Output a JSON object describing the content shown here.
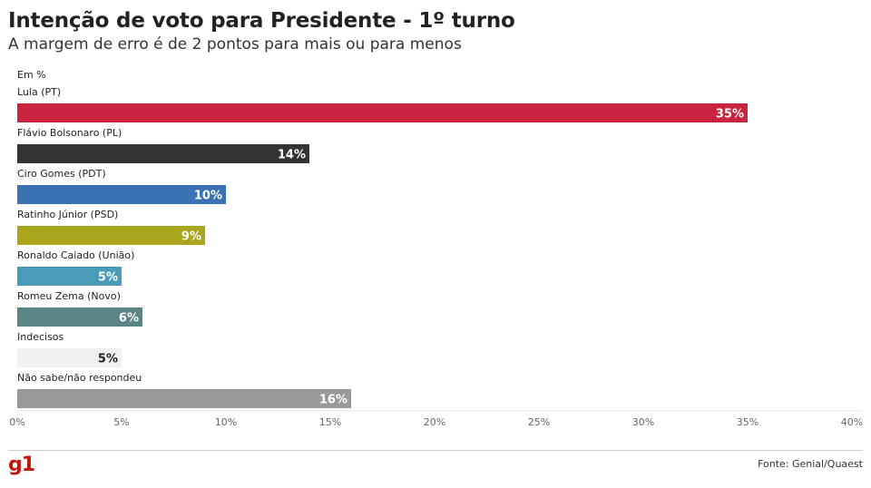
{
  "header": {
    "title": "Intenção de voto para Presidente - 1º turno",
    "subtitle": "A margem de erro é de 2 pontos para mais ou para menos"
  },
  "footer": {
    "logo": "g1",
    "logo_color": "#c4170c",
    "source": "Fonte: Genial/Quaest"
  },
  "chart_data": {
    "type": "bar",
    "orientation": "horizontal",
    "unit_label": "Em %",
    "categories": [
      "Lula (PT)",
      "Flávio Bolsonaro (PL)",
      "Ciro Gomes (PDT)",
      "Ratinho Júnior (PSD)",
      "Ronaldo Caiado (União)",
      "Romeu Zema (Novo)",
      "Indecisos",
      "Não sabe/não respondeu"
    ],
    "values": [
      35,
      14,
      10,
      9,
      5,
      6,
      5,
      16
    ],
    "value_labels": [
      "35%",
      "14%",
      "10%",
      "9%",
      "5%",
      "6%",
      "5%",
      "16%"
    ],
    "colors": [
      "#c9233f",
      "#333333",
      "#3a72b4",
      "#a9a61e",
      "#4a9bb8",
      "#5a8584",
      "#f0f0f0",
      "#999999"
    ],
    "label_colors": [
      "#ffffff",
      "#ffffff",
      "#ffffff",
      "#ffffff",
      "#ffffff",
      "#ffffff",
      "#222222",
      "#ffffff"
    ],
    "xlim": [
      0,
      40
    ],
    "xticks": [
      0,
      5,
      10,
      15,
      20,
      25,
      30,
      35,
      40
    ],
    "xtick_labels": [
      "0%",
      "5%",
      "10%",
      "15%",
      "20%",
      "25%",
      "30%",
      "35%",
      "40%"
    ],
    "grid": true
  }
}
